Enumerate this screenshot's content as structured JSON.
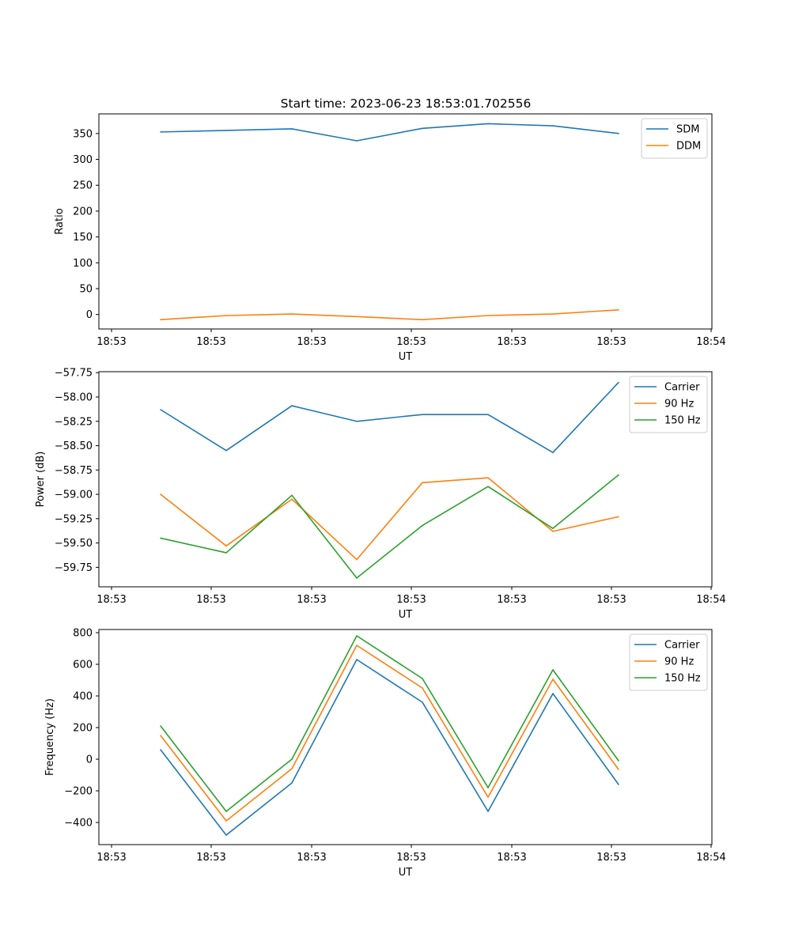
{
  "title": "Start time: 2023-06-23 18:53:01.702556",
  "colors": {
    "blue": "#1f77b4",
    "orange": "#ff7f0e",
    "green": "#2ca02c"
  },
  "chart_data": [
    {
      "type": "line",
      "xlabel": "UT",
      "ylabel": "Ratio",
      "xticks": [
        "18:53",
        "18:53",
        "18:53",
        "18:53",
        "18:53",
        "18:53",
        "18:54"
      ],
      "yticks": [
        0,
        50,
        100,
        150,
        200,
        250,
        300,
        350
      ],
      "ylim": [
        -28,
        388
      ],
      "legend_position": "top-right",
      "x": [
        1,
        2,
        3,
        4,
        5,
        6,
        7,
        8
      ],
      "series": [
        {
          "name": "SDM",
          "color": "#1f77b4",
          "values": [
            353,
            356,
            359,
            336,
            360,
            369,
            365,
            350
          ]
        },
        {
          "name": "DDM",
          "color": "#ff7f0e",
          "values": [
            -10,
            -2,
            1,
            -4,
            -10,
            -2,
            1,
            9
          ]
        }
      ]
    },
    {
      "type": "line",
      "xlabel": "UT",
      "ylabel": "Power (dB)",
      "xticks": [
        "18:53",
        "18:53",
        "18:53",
        "18:53",
        "18:53",
        "18:53",
        "18:54"
      ],
      "yticks": [
        "−59.75",
        "−59.50",
        "−59.25",
        "−59.00",
        "−58.75",
        "−58.50",
        "−58.25",
        "−58.00",
        "−57.75"
      ],
      "ytick_values": [
        -59.75,
        -59.5,
        -59.25,
        -59.0,
        -58.75,
        -58.5,
        -58.25,
        -58.0,
        -57.75
      ],
      "ylim": [
        -59.95,
        -57.74
      ],
      "legend_position": "top-right",
      "x": [
        1,
        2,
        3,
        4,
        5,
        6,
        7,
        8
      ],
      "series": [
        {
          "name": "Carrier",
          "color": "#1f77b4",
          "values": [
            -58.13,
            -58.55,
            -58.09,
            -58.25,
            -58.18,
            -58.18,
            -58.57,
            -57.85
          ]
        },
        {
          "name": "90 Hz",
          "color": "#ff7f0e",
          "values": [
            -59.0,
            -59.53,
            -59.05,
            -59.67,
            -58.88,
            -58.83,
            -59.38,
            -59.23
          ]
        },
        {
          "name": "150 Hz",
          "color": "#2ca02c",
          "values": [
            -59.45,
            -59.6,
            -59.01,
            -59.86,
            -59.32,
            -58.92,
            -59.35,
            -58.8
          ]
        }
      ]
    },
    {
      "type": "line",
      "xlabel": "UT",
      "ylabel": "Frequency (Hz)",
      "xticks": [
        "18:53",
        "18:53",
        "18:53",
        "18:53",
        "18:53",
        "18:53",
        "18:54"
      ],
      "yticks": [
        "−400",
        "−200",
        "0",
        "200",
        "400",
        "600",
        "800"
      ],
      "ytick_values": [
        -400,
        -200,
        0,
        200,
        400,
        600,
        800
      ],
      "ylim": [
        -540,
        820
      ],
      "legend_position": "top-right",
      "x": [
        1,
        2,
        3,
        4,
        5,
        6,
        7,
        8
      ],
      "series": [
        {
          "name": "Carrier",
          "color": "#1f77b4",
          "values": [
            60,
            -480,
            -150,
            630,
            360,
            -330,
            415,
            -160
          ]
        },
        {
          "name": "90 Hz",
          "color": "#ff7f0e",
          "values": [
            150,
            -390,
            -60,
            720,
            450,
            -240,
            505,
            -65
          ]
        },
        {
          "name": "150 Hz",
          "color": "#2ca02c",
          "values": [
            210,
            -330,
            0,
            780,
            510,
            -180,
            565,
            -10
          ]
        }
      ]
    }
  ]
}
